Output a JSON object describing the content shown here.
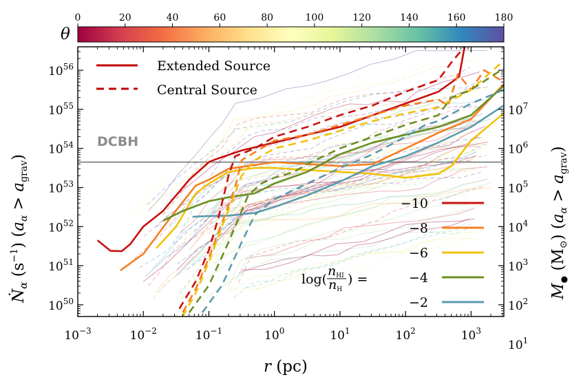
{
  "chart_data": {
    "type": "line",
    "xlabel": "r (pc)",
    "ylabel_left": "Ṅα (s⁻¹) (aα > a_grav)",
    "ylabel_right": "M• (M⊙) (aα > a_grav)",
    "xscale": "log",
    "yscale": "log",
    "xlim_log10": [
      -3,
      3.5
    ],
    "ylim_log10": [
      49.7,
      56.6
    ],
    "xtick_labels": [
      {
        "exp": -3,
        "base": "10",
        "sup": "−3"
      },
      {
        "exp": -2,
        "base": "10",
        "sup": "−2"
      },
      {
        "exp": -1,
        "base": "10",
        "sup": "−1"
      },
      {
        "exp": 0,
        "base": "10",
        "sup": "0"
      },
      {
        "exp": 1,
        "base": "10",
        "sup": "1"
      },
      {
        "exp": 2,
        "base": "10",
        "sup": "2"
      },
      {
        "exp": 3,
        "base": "10",
        "sup": "3"
      }
    ],
    "ytick_labels_left": [
      {
        "exp": 50,
        "base": "10",
        "sup": "50"
      },
      {
        "exp": 51,
        "base": "10",
        "sup": "51"
      },
      {
        "exp": 52,
        "base": "10",
        "sup": "52"
      },
      {
        "exp": 53,
        "base": "10",
        "sup": "53"
      },
      {
        "exp": 54,
        "base": "10",
        "sup": "54"
      },
      {
        "exp": 55,
        "base": "10",
        "sup": "55"
      },
      {
        "exp": 56,
        "base": "10",
        "sup": "56"
      }
    ],
    "right_axis_offset": 48,
    "ytick_labels_right": [
      {
        "exp": 1,
        "base": "10",
        "sup": "1"
      },
      {
        "exp": 2,
        "base": "10",
        "sup": "2"
      },
      {
        "exp": 3,
        "base": "10",
        "sup": "3"
      },
      {
        "exp": 4,
        "base": "10",
        "sup": "4"
      },
      {
        "exp": 5,
        "base": "10",
        "sup": "5"
      },
      {
        "exp": 6,
        "base": "10",
        "sup": "6"
      },
      {
        "exp": 7,
        "base": "10",
        "sup": "7"
      }
    ],
    "dcbh": {
      "label": "DCBH",
      "y_log10": 53.65,
      "color": "#8c8c8c"
    },
    "colorbar": {
      "label": "θ",
      "min": 0,
      "max": 180,
      "ticks": [
        "0",
        "20",
        "40",
        "60",
        "80",
        "100",
        "120",
        "140",
        "160",
        "180"
      ],
      "colors": [
        "#9e0142",
        "#d53e4f",
        "#f46d43",
        "#fdae61",
        "#fee08b",
        "#ffffbf",
        "#e6f598",
        "#abdda4",
        "#66c2a5",
        "#3288bd",
        "#5e4fa2"
      ]
    },
    "style_legend": [
      {
        "label": "Extended Source",
        "dash": "solid",
        "color": "#c00000"
      },
      {
        "label": "Central Source",
        "dash": "dashed",
        "color": "#c00000"
      }
    ],
    "ratio_legend": {
      "prefix": "log(",
      "num": "n",
      "num_sub": "HI",
      "den": "n",
      "den_sub": "H",
      "suffix": ") =",
      "entries": [
        {
          "label": "−10",
          "color": "#c8100f"
        },
        {
          "label": "−8",
          "color": "#f47f23"
        },
        {
          "label": "−6",
          "color": "#f2c10a"
        },
        {
          "label": "−4",
          "color": "#6a8f22"
        },
        {
          "label": "−2",
          "color": "#5b9aae"
        }
      ]
    },
    "series": [
      {
        "name": "−10 extended",
        "color": "#c8100f",
        "dash": "solid",
        "x_log10": [
          -2.7,
          -2.5,
          -2.33,
          -2.2,
          -2.0,
          -1.7,
          -1.3,
          -1.0,
          -0.9,
          -0.5,
          0.0,
          0.5,
          1.0,
          1.5,
          2.0,
          2.5,
          2.75,
          2.82,
          2.9
        ],
        "y_log10": [
          51.65,
          51.38,
          51.37,
          51.55,
          52.0,
          52.4,
          53.2,
          53.65,
          53.72,
          53.95,
          54.15,
          54.35,
          54.55,
          54.85,
          55.15,
          55.45,
          55.75,
          55.85,
          56.6
        ]
      },
      {
        "name": "−8 extended",
        "color": "#f47f23",
        "dash": "solid",
        "x_log10": [
          -2.35,
          -2.0,
          -1.6,
          -1.2,
          -1.0,
          -0.7,
          0.0,
          0.5,
          1.0,
          1.5,
          2.0,
          2.5,
          3.0,
          3.5
        ],
        "y_log10": [
          50.88,
          51.3,
          52.2,
          53.05,
          53.2,
          53.48,
          53.65,
          53.6,
          53.55,
          53.6,
          54.0,
          54.4,
          54.75,
          55.65
        ]
      },
      {
        "name": "−6 extended",
        "color": "#f2c10a",
        "dash": "solid",
        "x_log10": [
          -1.8,
          -1.5,
          -1.2,
          -1.0,
          -0.7,
          -0.3,
          0.0,
          0.5,
          1.0,
          1.5,
          2.0,
          2.5,
          2.7,
          3.0,
          3.5
        ],
        "y_log10": [
          51.45,
          52.0,
          52.85,
          53.1,
          53.4,
          53.5,
          53.5,
          53.45,
          53.4,
          53.35,
          53.25,
          53.35,
          53.55,
          54.2,
          54.9
        ]
      },
      {
        "name": "−4 extended",
        "color": "#6a8f22",
        "dash": "solid",
        "x_log10": [
          -1.7,
          -1.4,
          -1.0,
          -0.7,
          -0.3,
          0.0,
          0.5,
          1.0,
          1.5,
          2.0,
          2.5,
          3.0,
          3.5
        ],
        "y_log10": [
          52.15,
          52.4,
          52.65,
          52.75,
          52.85,
          53.1,
          53.4,
          53.85,
          54.15,
          54.35,
          54.55,
          54.85,
          55.6
        ]
      },
      {
        "name": "−2 extended",
        "color": "#5b9aae",
        "dash": "solid",
        "x_log10": [
          -1.25,
          -1.0,
          -0.7,
          -0.3,
          0.0,
          0.5,
          1.0,
          1.5,
          2.0,
          2.5,
          3.0,
          3.5
        ],
        "y_log10": [
          52.25,
          52.27,
          52.28,
          52.35,
          52.5,
          52.8,
          53.15,
          53.55,
          53.8,
          54.15,
          54.55,
          55.1
        ]
      },
      {
        "name": "−10 central",
        "color": "#c8100f",
        "dash": "dashed",
        "x_log10": [
          -1.45,
          -1.2,
          -1.0,
          -0.85,
          -0.7,
          -0.6,
          -0.3,
          0.0,
          0.5,
          1.0,
          1.5,
          2.0,
          2.5,
          2.7,
          2.9
        ],
        "y_log10": [
          49.9,
          50.6,
          51.4,
          52.25,
          53.3,
          53.8,
          54.0,
          54.3,
          54.55,
          54.85,
          55.1,
          55.45,
          55.75,
          56.2,
          56.6
        ]
      },
      {
        "name": "−8 central",
        "color": "#f47f23",
        "dash": "dashed",
        "x_log10": [
          -1.4,
          -1.2,
          -1.0,
          -0.8,
          -0.6,
          -0.5,
          -0.3,
          0.0,
          0.5,
          1.0,
          1.5,
          2.0,
          2.5,
          2.65,
          2.8,
          3.0,
          3.2,
          3.5
        ],
        "y_log10": [
          49.8,
          50.4,
          51.2,
          52.1,
          53.0,
          53.7,
          53.9,
          54.2,
          54.35,
          54.6,
          54.85,
          55.1,
          55.25,
          55.1,
          55.9,
          55.5,
          56.0,
          55.7
        ]
      },
      {
        "name": "−6 central",
        "color": "#f2c10a",
        "dash": "dashed",
        "x_log10": [
          -1.4,
          -1.2,
          -1.0,
          -0.8,
          -0.5,
          -0.3,
          0.0,
          0.5,
          1.0,
          1.5,
          2.0,
          2.5,
          3.0,
          3.5
        ],
        "y_log10": [
          49.7,
          50.3,
          51.1,
          52.0,
          53.3,
          53.7,
          54.0,
          54.2,
          54.45,
          54.7,
          54.9,
          55.05,
          55.5,
          56.25
        ]
      },
      {
        "name": "−4 central",
        "color": "#6a8f22",
        "dash": "dashed",
        "x_log10": [
          -1.3,
          -1.0,
          -0.7,
          -0.4,
          -0.2,
          0.0,
          0.3,
          0.5,
          1.0,
          1.5,
          2.0,
          2.5,
          2.7,
          3.0,
          3.5
        ],
        "y_log10": [
          49.8,
          50.5,
          51.6,
          52.8,
          53.1,
          53.25,
          53.4,
          53.6,
          54.0,
          54.3,
          54.6,
          54.85,
          55.3,
          55.5,
          56.05
        ]
      },
      {
        "name": "−2 central",
        "color": "#5b9aae",
        "dash": "dashed",
        "x_log10": [
          -1.1,
          -0.8,
          -0.5,
          -0.3,
          0.0,
          0.5,
          1.0,
          1.5,
          2.0,
          2.3,
          2.5,
          3.0,
          3.5
        ],
        "y_log10": [
          49.8,
          50.5,
          51.6,
          52.3,
          52.7,
          53.1,
          53.5,
          53.85,
          54.3,
          54.6,
          54.7,
          55.15,
          55.5
        ]
      }
    ]
  }
}
